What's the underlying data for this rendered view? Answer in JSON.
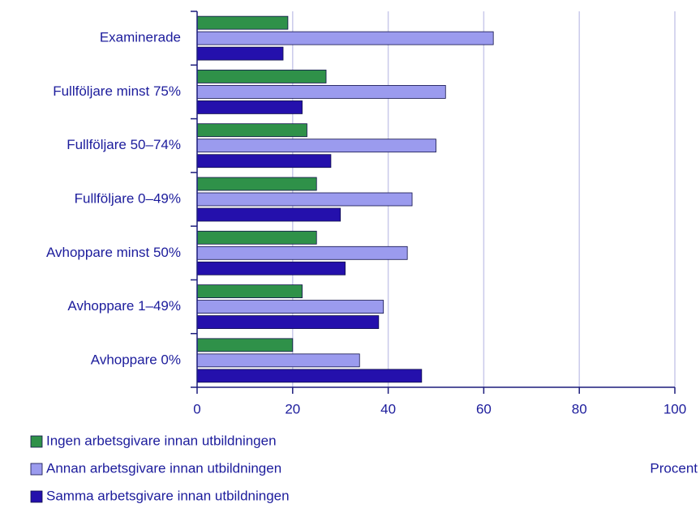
{
  "chart_data": {
    "type": "bar",
    "orientation": "horizontal",
    "categories": [
      "Examinerade",
      "Fullföljare minst 75%",
      "Fullföljare 50–74%",
      "Fullföljare 0–49%",
      "Avhoppare minst 50%",
      "Avhoppare 1–49%",
      "Avhoppare 0%"
    ],
    "series": [
      {
        "name": "Ingen arbetsgivare innan utbildningen",
        "color": "#2f9149",
        "values": [
          19,
          27,
          23,
          25,
          25,
          22,
          20
        ]
      },
      {
        "name": "Annan arbetsgivare innan utbildningen",
        "color": "#9b9bee",
        "values": [
          62,
          52,
          50,
          45,
          44,
          39,
          34
        ]
      },
      {
        "name": "Samma arbetsgivare innan utbildningen",
        "color": "#2410ac",
        "values": [
          18,
          22,
          28,
          30,
          31,
          38,
          47
        ]
      }
    ],
    "xlabel": "Procent",
    "xlim": [
      0,
      100
    ],
    "xticks": [
      0,
      20,
      40,
      60,
      80,
      100
    ],
    "grid": true,
    "legend": "bottom-left"
  }
}
